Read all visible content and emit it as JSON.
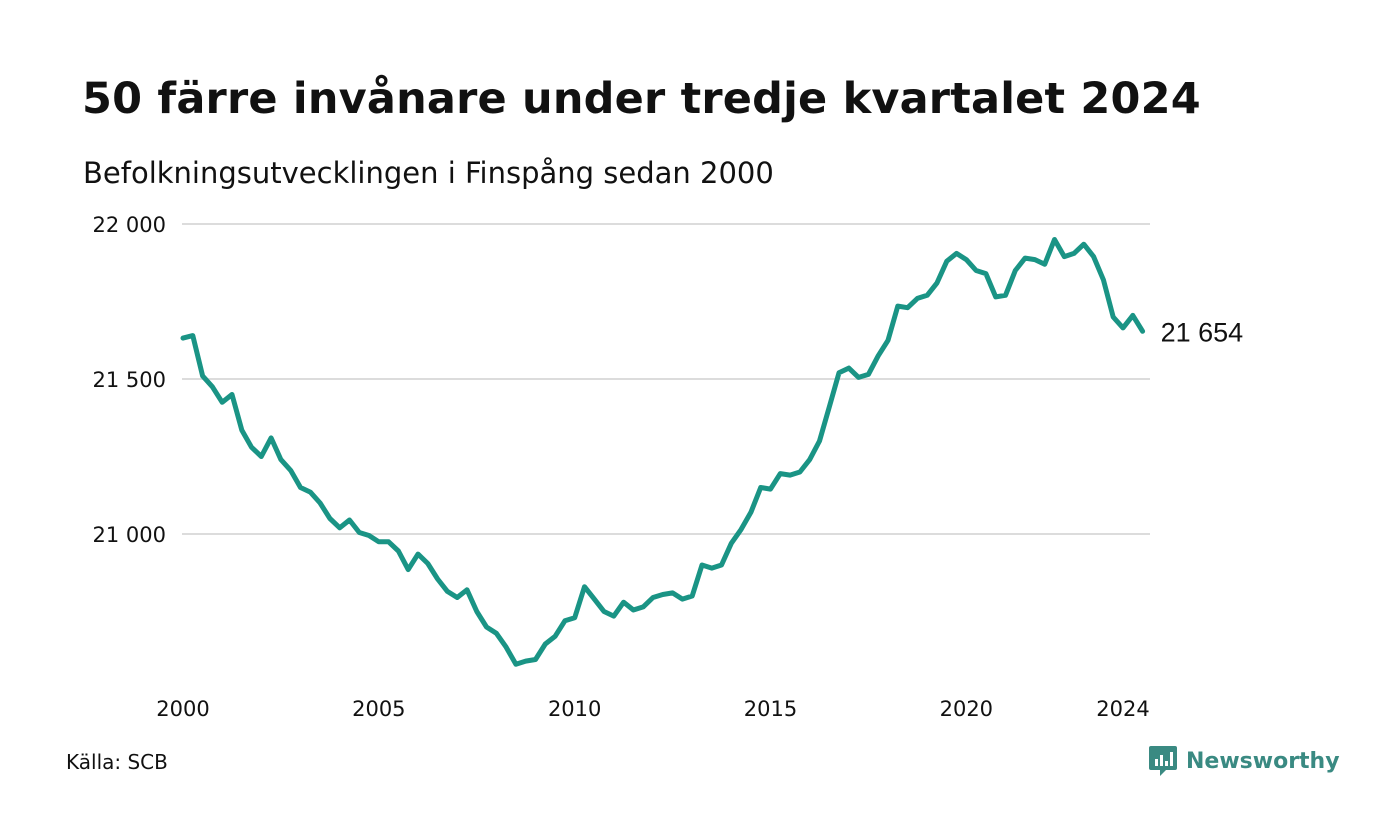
{
  "title": "50 färre invånare under tredje kvartalet 2024",
  "subtitle": "Befolkningsutvecklingen i Finspång sedan 2000",
  "source": "Källa: SCB",
  "brand": {
    "name": "Newsworthy",
    "icon": "newsworthy-logo-icon",
    "color": "#3a8a82"
  },
  "colors": {
    "line": "#1a9485",
    "grid": "#dcdcdc",
    "text": "#111111"
  },
  "chart_data": {
    "type": "line",
    "title": "50 färre invånare under tredje kvartalet 2024",
    "subtitle": "Befolkningsutvecklingen i Finspång sedan 2000",
    "xlabel": "",
    "ylabel": "",
    "xlim": [
      2000,
      2025
    ],
    "ylim": [
      20550,
      22050
    ],
    "y_ticks": [
      21000,
      21500,
      22000
    ],
    "y_tick_labels": [
      "21 000",
      "21 500",
      "22 000"
    ],
    "x_ticks": [
      2000,
      2005,
      2010,
      2015,
      2020,
      2024
    ],
    "x_tick_labels": [
      "2000",
      "2005",
      "2010",
      "2015",
      "2020",
      "2024"
    ],
    "grid": "horizontal",
    "end_label": "21 654",
    "series": [
      {
        "color": "#1a9485",
        "x": [
          2000.0,
          2000.25,
          2000.5,
          2000.75,
          2001.0,
          2001.25,
          2001.5,
          2001.75,
          2002.0,
          2002.25,
          2002.5,
          2002.75,
          2003.0,
          2003.25,
          2003.5,
          2003.75,
          2004.0,
          2004.25,
          2004.5,
          2004.75,
          2005.0,
          2005.25,
          2005.5,
          2005.75,
          2006.0,
          2006.25,
          2006.5,
          2006.75,
          2007.0,
          2007.25,
          2007.5,
          2007.75,
          2008.0,
          2008.25,
          2008.5,
          2008.75,
          2009.0,
          2009.25,
          2009.5,
          2009.75,
          2010.0,
          2010.25,
          2010.5,
          2010.75,
          2011.0,
          2011.25,
          2011.5,
          2011.75,
          2012.0,
          2012.25,
          2012.5,
          2012.75,
          2013.0,
          2013.25,
          2013.5,
          2013.75,
          2014.0,
          2014.25,
          2014.5,
          2014.75,
          2015.0,
          2015.25,
          2015.5,
          2015.75,
          2016.0,
          2016.25,
          2016.5,
          2016.75,
          2017.0,
          2017.25,
          2017.5,
          2017.75,
          2018.0,
          2018.25,
          2018.5,
          2018.75,
          2019.0,
          2019.25,
          2019.5,
          2019.75,
          2020.0,
          2020.25,
          2020.5,
          2020.75,
          2021.0,
          2021.25,
          2021.5,
          2021.75,
          2022.0,
          2022.25,
          2022.5,
          2022.75,
          2023.0,
          2023.25,
          2023.5,
          2023.75,
          2024.0,
          2024.25,
          2024.5
        ],
        "values": [
          21632,
          21640,
          21510,
          21475,
          21425,
          21450,
          21335,
          21280,
          21250,
          21310,
          21240,
          21205,
          21150,
          21135,
          21100,
          21050,
          21020,
          21045,
          21005,
          20995,
          20975,
          20975,
          20945,
          20885,
          20935,
          20905,
          20855,
          20815,
          20795,
          20820,
          20750,
          20700,
          20680,
          20635,
          20580,
          20590,
          20595,
          20645,
          20670,
          20720,
          20730,
          20830,
          20790,
          20750,
          20735,
          20780,
          20755,
          20765,
          20795,
          20805,
          20810,
          20790,
          20800,
          20900,
          20890,
          20900,
          20970,
          21015,
          21070,
          21150,
          21145,
          21195,
          21190,
          21200,
          21240,
          21300,
          21410,
          21520,
          21535,
          21505,
          21515,
          21575,
          21625,
          21735,
          21730,
          21760,
          21770,
          21810,
          21880,
          21905,
          21885,
          21850,
          21840,
          21765,
          21770,
          21850,
          21890,
          21885,
          21870,
          21950,
          21895,
          21905,
          21935,
          21895,
          21820,
          21700,
          21665,
          21705,
          21654
        ]
      }
    ]
  }
}
